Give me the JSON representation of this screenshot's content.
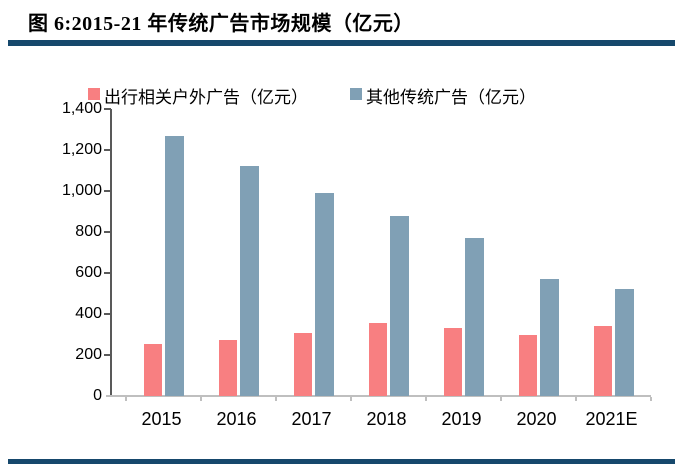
{
  "title": "图 6:2015-21 年传统广告市场规模（亿元）",
  "colors": {
    "accent_rule": "#16486C",
    "series_red": "#F87F81",
    "series_blue": "#80A0B5",
    "axis_dark": "#595959",
    "axis_light": "#BFBFBF"
  },
  "chart_data": {
    "type": "bar",
    "title": "图 6:2015-21 年传统广告市场规模（亿元）",
    "categories": [
      "2015",
      "2016",
      "2017",
      "2018",
      "2019",
      "2020",
      "2021E"
    ],
    "series": [
      {
        "name": "出行相关户外广告（亿元）",
        "color": "#F87F81",
        "values": [
          255,
          275,
          310,
          355,
          330,
          300,
          340
        ]
      },
      {
        "name": "其他传统广告（亿元）",
        "color": "#80A0B5",
        "values": [
          1270,
          1120,
          990,
          880,
          770,
          570,
          520
        ]
      }
    ],
    "xlabel": "",
    "ylabel": "",
    "ylim": [
      0,
      1400
    ],
    "ytick_step": 200,
    "ytick_labels": [
      "0",
      "200",
      "400",
      "600",
      "800",
      "1,000",
      "1,200",
      "1,400"
    ],
    "grid": false,
    "legend_position": "top-left-inside"
  }
}
